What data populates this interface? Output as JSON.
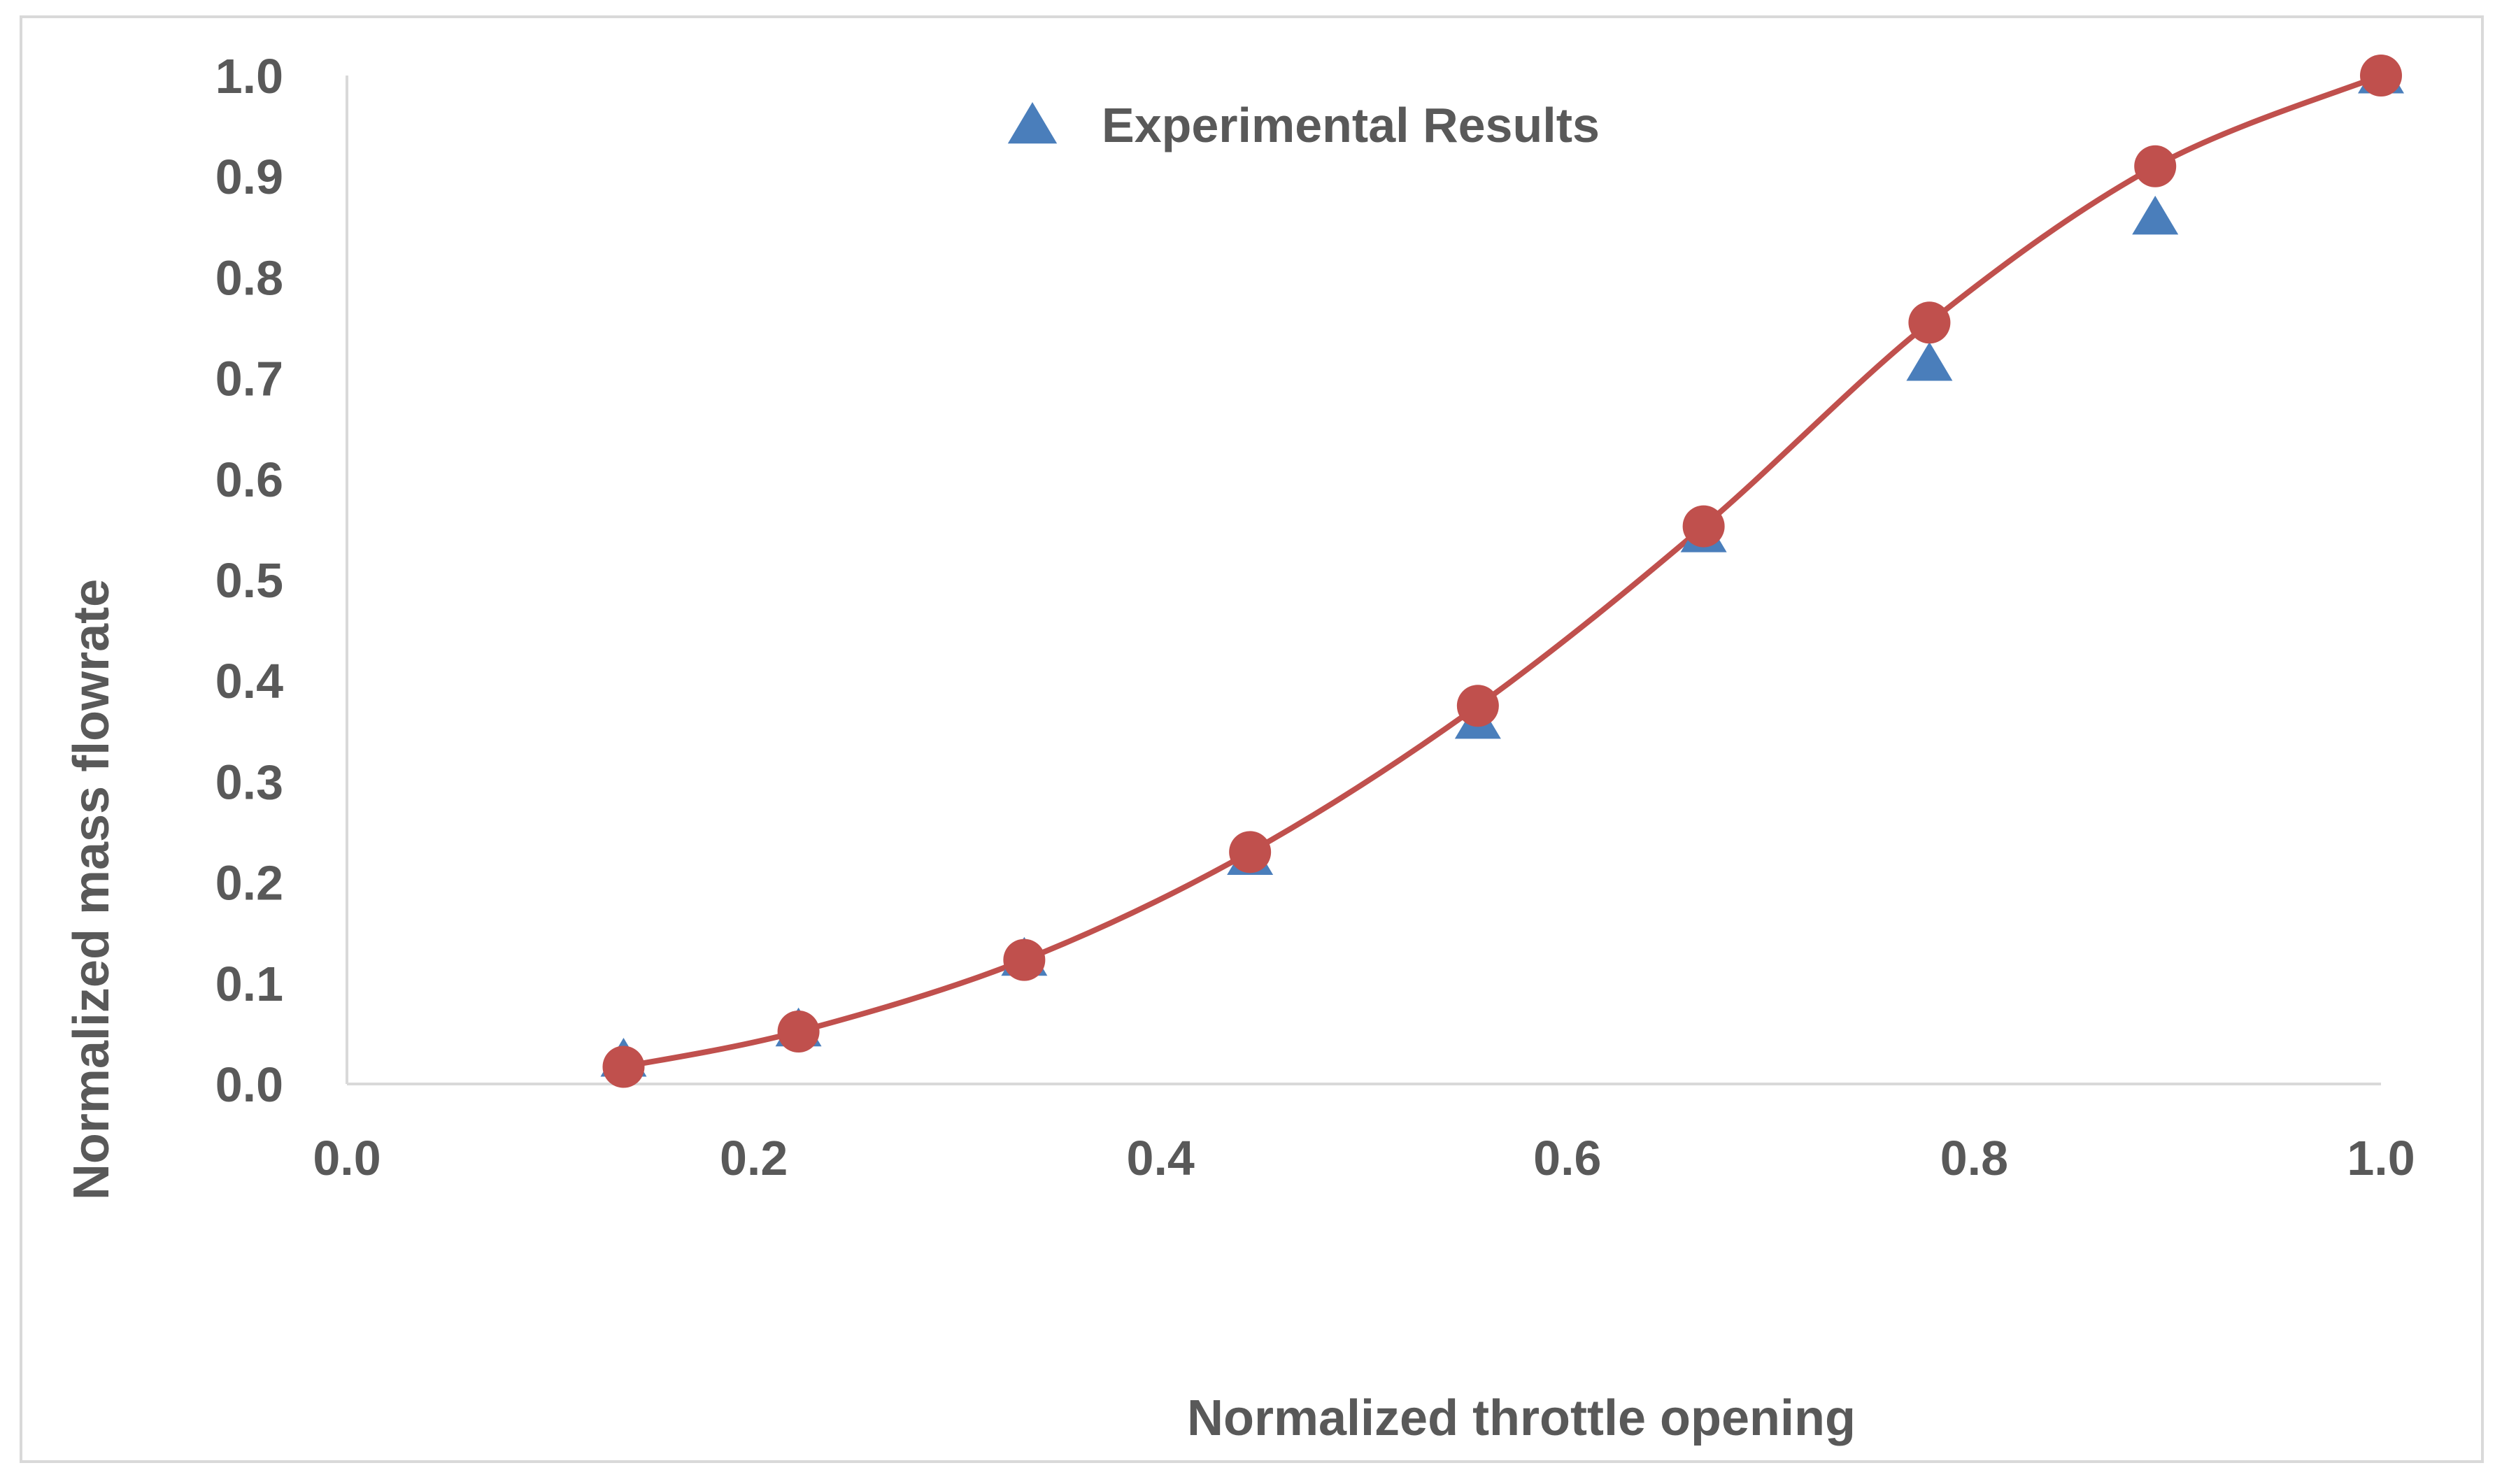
{
  "chart_data": {
    "type": "scatter",
    "title": "",
    "xlabel": "Normalized throttle opening",
    "ylabel": "Normalized mass flowrate",
    "xlim": [
      0.0,
      1.0
    ],
    "ylim": [
      0.0,
      1.0
    ],
    "x_ticks": [
      "0.0",
      "0.2",
      "0.4",
      "0.6",
      "0.8",
      "1.0"
    ],
    "y_ticks": [
      "0.0",
      "0.1",
      "0.2",
      "0.3",
      "0.4",
      "0.5",
      "0.6",
      "0.7",
      "0.8",
      "0.9",
      "1.0"
    ],
    "grid": false,
    "legend_position": "top-center",
    "series": [
      {
        "name": "Experimental Results",
        "marker": "triangle",
        "color": "#4a7ebb",
        "x": [
          0.136,
          0.222,
          0.333,
          0.444,
          0.556,
          0.667,
          0.778,
          0.889,
          1.0
        ],
        "y": [
          0.025,
          0.055,
          0.125,
          0.225,
          0.36,
          0.545,
          0.715,
          0.86,
          1.0
        ]
      },
      {
        "name": "",
        "marker": "circle",
        "line": true,
        "color": "#c0504d",
        "x": [
          0.136,
          0.222,
          0.333,
          0.444,
          0.556,
          0.667,
          0.778,
          0.889,
          1.0
        ],
        "y": [
          0.017,
          0.052,
          0.123,
          0.23,
          0.375,
          0.553,
          0.755,
          0.91,
          1.0
        ]
      }
    ]
  }
}
